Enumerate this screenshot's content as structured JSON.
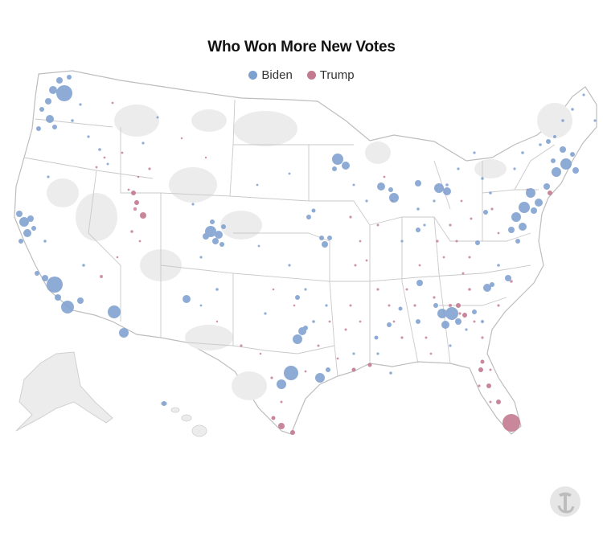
{
  "title": "Who Won More New Votes",
  "legend": [
    {
      "label": "Biden",
      "color": "#7ea0cf"
    },
    {
      "label": "Trump",
      "color": "#c27a8f"
    }
  ],
  "colors": {
    "biden": "#7ea0cf",
    "trump": "#c27a8f",
    "land": "#ffffff",
    "border": "#bdbdbd",
    "shade": "#ececec"
  },
  "publisher_logo": "nyt-t-logo"
}
